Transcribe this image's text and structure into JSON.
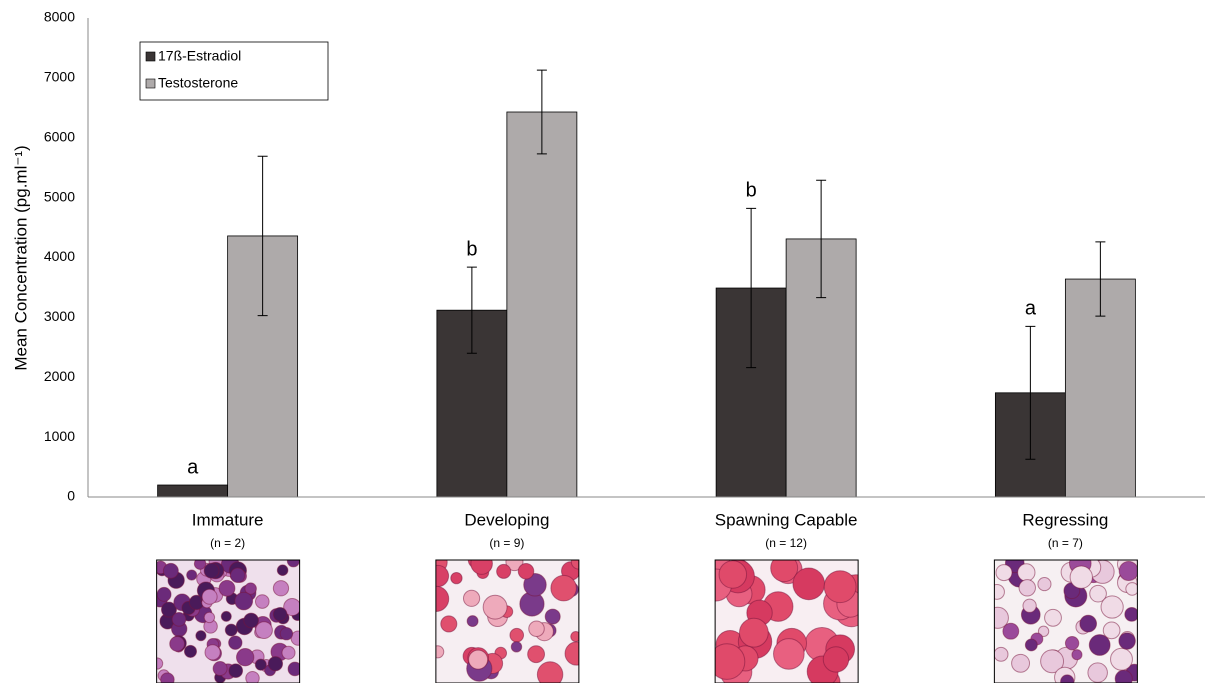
{
  "chart_data": {
    "type": "bar",
    "ylabel": "Mean Concentration (pg.ml⁻¹)",
    "categories": [
      "Immature",
      "Developing",
      "Spawning Capable",
      "Regressing"
    ],
    "sublabels": [
      "(n = 2)",
      "(n = 9)",
      "(n = 12)",
      "(n = 7)"
    ],
    "letters": [
      "a",
      "b",
      "b",
      "a"
    ],
    "series": [
      {
        "name": "17ß-Estradiol",
        "color": "#3a3535",
        "values": [
          200,
          3120,
          3490,
          1740
        ],
        "errors": [
          null,
          720,
          1330,
          1110
        ]
      },
      {
        "name": "Testosterone",
        "color": "#aeaaaa",
        "values": [
          4360,
          6430,
          4310,
          3640
        ],
        "errors": [
          1330,
          700,
          980,
          620
        ]
      }
    ],
    "ylim": [
      0,
      8000
    ],
    "yticks": [
      0,
      1000,
      2000,
      3000,
      4000,
      5000,
      6000,
      7000,
      8000
    ],
    "grid": false,
    "legend": "top-left"
  }
}
